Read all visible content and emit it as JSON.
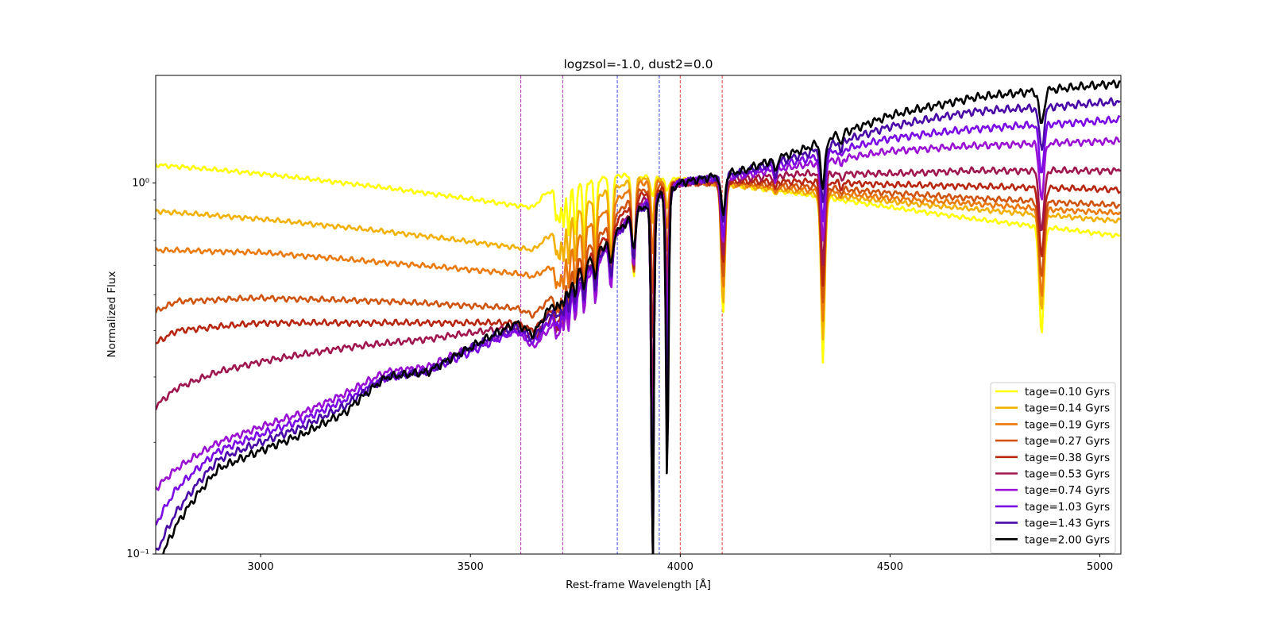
{
  "chart_data": {
    "type": "line",
    "title": "logzsol=-1.0, dust2=0.0",
    "xlabel": "Rest-frame Wavelength [Å]",
    "ylabel": "Normalized Flux",
    "xlim": [
      2750,
      5050
    ],
    "ylim": [
      0.1,
      1.95
    ],
    "yscale": "log",
    "grid": false,
    "legend_location": "lower right",
    "x_ticks": [
      3000,
      3500,
      4000,
      4500,
      5000
    ],
    "y_ticks": [
      {
        "value": 1.0,
        "label": "10⁰"
      },
      {
        "value": 0.1,
        "label": "10⁻¹"
      }
    ],
    "vlines": [
      {
        "x": 3620,
        "color": "#bf40bf"
      },
      {
        "x": 3720,
        "color": "#bf40bf"
      },
      {
        "x": 3850,
        "color": "#4b5bde"
      },
      {
        "x": 3950,
        "color": "#4b5bde"
      },
      {
        "x": 4000,
        "color": "#e8504a"
      },
      {
        "x": 4100,
        "color": "#e8504a"
      }
    ],
    "series": [
      {
        "name": "tage=0.10 Gyrs",
        "color": "#ffff00",
        "anchors": [
          [
            2750,
            1.12
          ],
          [
            3000,
            1.06
          ],
          [
            3300,
            0.97
          ],
          [
            3610,
            0.87
          ],
          [
            3650,
            0.86
          ],
          [
            3680,
            0.94
          ],
          [
            3750,
            0.99
          ],
          [
            3850,
            1.05
          ],
          [
            3950,
            1.03
          ],
          [
            4050,
            1.02
          ],
          [
            4150,
            0.98
          ],
          [
            4300,
            0.93
          ],
          [
            4500,
            0.86
          ],
          [
            4700,
            0.8
          ],
          [
            4870,
            0.76
          ],
          [
            5050,
            0.72
          ]
        ]
      },
      {
        "name": "tage=0.14 Gyrs",
        "color": "#f2b000",
        "anchors": [
          [
            2750,
            0.84
          ],
          [
            3000,
            0.8
          ],
          [
            3300,
            0.74
          ],
          [
            3610,
            0.67
          ],
          [
            3650,
            0.66
          ],
          [
            3700,
            0.74
          ],
          [
            3800,
            0.92
          ],
          [
            3900,
            1.03
          ],
          [
            4000,
            1.01
          ],
          [
            4150,
            0.98
          ],
          [
            4300,
            0.94
          ],
          [
            4500,
            0.89
          ],
          [
            4700,
            0.85
          ],
          [
            4870,
            0.82
          ],
          [
            5050,
            0.79
          ]
        ]
      },
      {
        "name": "tage=0.19 Gyrs",
        "color": "#eb7a0c",
        "anchors": [
          [
            2750,
            0.66
          ],
          [
            3000,
            0.65
          ],
          [
            3300,
            0.61
          ],
          [
            3610,
            0.57
          ],
          [
            3650,
            0.56
          ],
          [
            3700,
            0.6
          ],
          [
            3800,
            0.8
          ],
          [
            3900,
            1.0
          ],
          [
            4000,
            1.01
          ],
          [
            4150,
            0.99
          ],
          [
            4300,
            0.96
          ],
          [
            4500,
            0.91
          ],
          [
            4700,
            0.88
          ],
          [
            4870,
            0.85
          ],
          [
            5050,
            0.83
          ]
        ]
      },
      {
        "name": "tage=0.27 Gyrs",
        "color": "#d0540e",
        "anchors": [
          [
            2750,
            0.45
          ],
          [
            2800,
            0.48
          ],
          [
            3000,
            0.49
          ],
          [
            3300,
            0.48
          ],
          [
            3610,
            0.46
          ],
          [
            3650,
            0.44
          ],
          [
            3700,
            0.5
          ],
          [
            3800,
            0.7
          ],
          [
            3900,
            0.95
          ],
          [
            4000,
            1.0
          ],
          [
            4150,
            1.0
          ],
          [
            4300,
            0.98
          ],
          [
            4500,
            0.94
          ],
          [
            4700,
            0.91
          ],
          [
            4870,
            0.89
          ],
          [
            5050,
            0.87
          ]
        ]
      },
      {
        "name": "tage=0.38 Gyrs",
        "color": "#b82510",
        "anchors": [
          [
            2750,
            0.37
          ],
          [
            2800,
            0.4
          ],
          [
            3000,
            0.42
          ],
          [
            3300,
            0.42
          ],
          [
            3610,
            0.42
          ],
          [
            3650,
            0.4
          ],
          [
            3700,
            0.46
          ],
          [
            3800,
            0.66
          ],
          [
            3900,
            0.92
          ],
          [
            4000,
            1.0
          ],
          [
            4150,
            1.01
          ],
          [
            4300,
            1.01
          ],
          [
            4500,
            0.99
          ],
          [
            4700,
            0.98
          ],
          [
            4870,
            0.97
          ],
          [
            5050,
            0.96
          ]
        ]
      },
      {
        "name": "tage=0.53 Gyrs",
        "color": "#a0174f",
        "anchors": [
          [
            2750,
            0.25
          ],
          [
            2800,
            0.28
          ],
          [
            2900,
            0.31
          ],
          [
            3000,
            0.33
          ],
          [
            3200,
            0.36
          ],
          [
            3400,
            0.38
          ],
          [
            3610,
            0.41
          ],
          [
            3650,
            0.38
          ],
          [
            3700,
            0.44
          ],
          [
            3800,
            0.62
          ],
          [
            3900,
            0.88
          ],
          [
            4000,
            1.0
          ],
          [
            4150,
            1.03
          ],
          [
            4300,
            1.06
          ],
          [
            4500,
            1.06
          ],
          [
            4700,
            1.08
          ],
          [
            4870,
            1.08
          ],
          [
            5050,
            1.08
          ]
        ]
      },
      {
        "name": "tage=0.74 Gyrs",
        "color": "#9a10d4",
        "anchors": [
          [
            2750,
            0.15
          ],
          [
            2800,
            0.17
          ],
          [
            2900,
            0.2
          ],
          [
            3000,
            0.22
          ],
          [
            3100,
            0.24
          ],
          [
            3200,
            0.27
          ],
          [
            3300,
            0.31
          ],
          [
            3400,
            0.32
          ],
          [
            3500,
            0.36
          ],
          [
            3610,
            0.4
          ],
          [
            3650,
            0.36
          ],
          [
            3700,
            0.42
          ],
          [
            3800,
            0.6
          ],
          [
            3900,
            0.86
          ],
          [
            4000,
            1.0
          ],
          [
            4150,
            1.05
          ],
          [
            4300,
            1.12
          ],
          [
            4500,
            1.22
          ],
          [
            4700,
            1.26
          ],
          [
            4870,
            1.28
          ],
          [
            5050,
            1.3
          ]
        ]
      },
      {
        "name": "tage=1.03 Gyrs",
        "color": "#7a0ae6",
        "anchors": [
          [
            2750,
            0.12
          ],
          [
            2800,
            0.15
          ],
          [
            2900,
            0.19
          ],
          [
            3000,
            0.21
          ],
          [
            3100,
            0.23
          ],
          [
            3200,
            0.26
          ],
          [
            3300,
            0.3
          ],
          [
            3400,
            0.31
          ],
          [
            3500,
            0.35
          ],
          [
            3610,
            0.4
          ],
          [
            3650,
            0.37
          ],
          [
            3700,
            0.44
          ],
          [
            3800,
            0.61
          ],
          [
            3900,
            0.85
          ],
          [
            4000,
            1.0
          ],
          [
            4150,
            1.06
          ],
          [
            4300,
            1.16
          ],
          [
            4500,
            1.32
          ],
          [
            4700,
            1.4
          ],
          [
            4870,
            1.44
          ],
          [
            5050,
            1.48
          ]
        ]
      },
      {
        "name": "tage=1.43 Gyrs",
        "color": "#4a0aa8",
        "anchors": [
          [
            2750,
            0.1
          ],
          [
            2800,
            0.13
          ],
          [
            2900,
            0.18
          ],
          [
            3000,
            0.2
          ],
          [
            3100,
            0.22
          ],
          [
            3200,
            0.25
          ],
          [
            3300,
            0.3
          ],
          [
            3400,
            0.31
          ],
          [
            3500,
            0.36
          ],
          [
            3610,
            0.41
          ],
          [
            3650,
            0.38
          ],
          [
            3700,
            0.46
          ],
          [
            3800,
            0.62
          ],
          [
            3900,
            0.84
          ],
          [
            4000,
            1.0
          ],
          [
            4150,
            1.07
          ],
          [
            4300,
            1.2
          ],
          [
            4500,
            1.42
          ],
          [
            4700,
            1.56
          ],
          [
            4870,
            1.6
          ],
          [
            5050,
            1.66
          ]
        ]
      },
      {
        "name": "tage=2.00 Gyrs",
        "color": "#000000",
        "anchors": [
          [
            2750,
            0.09
          ],
          [
            2800,
            0.12
          ],
          [
            2900,
            0.17
          ],
          [
            3000,
            0.19
          ],
          [
            3100,
            0.21
          ],
          [
            3200,
            0.24
          ],
          [
            3300,
            0.3
          ],
          [
            3400,
            0.31
          ],
          [
            3500,
            0.36
          ],
          [
            3610,
            0.42
          ],
          [
            3650,
            0.39
          ],
          [
            3700,
            0.48
          ],
          [
            3800,
            0.64
          ],
          [
            3900,
            0.84
          ],
          [
            4000,
            1.0
          ],
          [
            4150,
            1.08
          ],
          [
            4300,
            1.24
          ],
          [
            4500,
            1.52
          ],
          [
            4700,
            1.7
          ],
          [
            4870,
            1.78
          ],
          [
            5050,
            1.86
          ]
        ]
      }
    ]
  }
}
